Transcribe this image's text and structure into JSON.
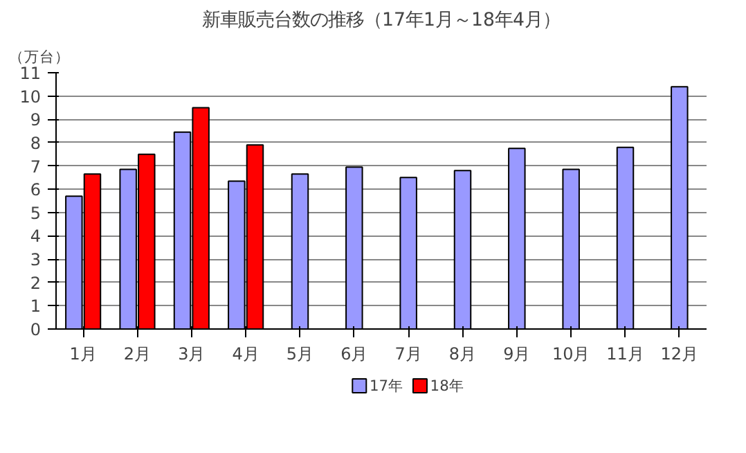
{
  "chart_data": {
    "type": "bar",
    "title": "新車販売台数の推移（17年1月～18年4月）",
    "ylabel": "（万台）",
    "categories": [
      "1月",
      "2月",
      "3月",
      "4月",
      "5月",
      "6月",
      "7月",
      "8月",
      "9月",
      "10月",
      "11月",
      "12月"
    ],
    "series": [
      {
        "name": "17年",
        "color": "#9999ff",
        "values": [
          5.7,
          6.85,
          8.45,
          6.35,
          6.65,
          6.95,
          6.5,
          6.8,
          7.75,
          6.85,
          7.8,
          10.4
        ]
      },
      {
        "name": "18年",
        "color": "#ff0000",
        "values": [
          6.65,
          7.5,
          9.5,
          7.9,
          null,
          null,
          null,
          null,
          null,
          null,
          null,
          null
        ]
      }
    ],
    "ylim": [
      0,
      11
    ],
    "yticks": [
      0,
      1,
      2,
      3,
      4,
      5,
      6,
      7,
      8,
      9,
      10,
      11
    ],
    "grid": "y",
    "legend": "bottom"
  }
}
